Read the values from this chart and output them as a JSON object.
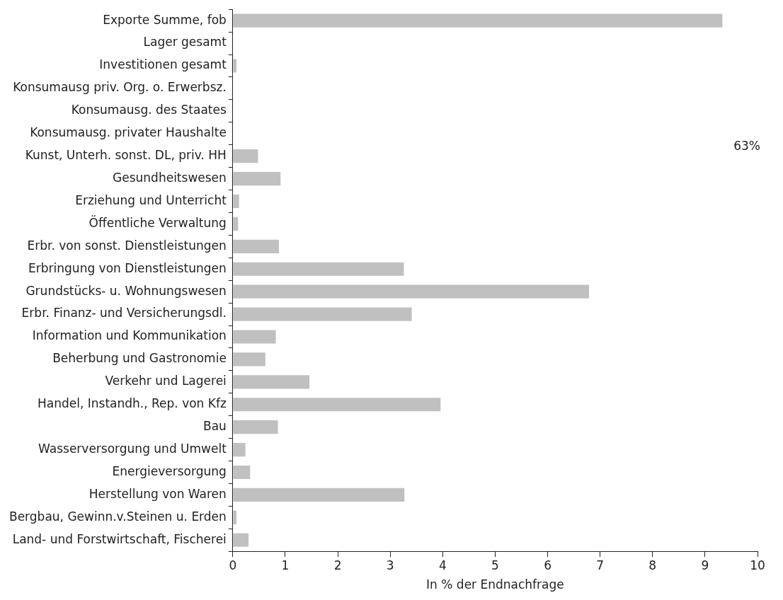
{
  "chart_data": {
    "type": "bar",
    "orientation": "horizontal",
    "xlabel": "In % der Endnachfrage",
    "categories": [
      "Exporte Summe, fob",
      "Lager gesamt",
      "Investitionen gesamt",
      "Konsumausg priv. Org. o. Erwerbsz.",
      "Konsumausg. des Staates",
      "Konsumausg. privater Haushalte",
      "Kunst, Unterh. sonst. DL, priv. HH",
      "Gesundheitswesen",
      "Erziehung und Unterricht",
      "Öffentliche Verwaltung",
      "Erbr. von sonst. Dienstleistungen",
      "Erbringung von Dienstleistungen",
      "Grundstücks- u. Wohnungswesen",
      "Erbr. Finanz- und Versicherungsdl.",
      "Information und Kommunikation",
      "Beherbung und Gastronomie",
      "Verkehr und Lagerei",
      "Handel, Instandh., Rep. von Kfz",
      "Bau",
      "Wasserversorgung und Umwelt",
      "Energieversorgung",
      "Herstellung von Waren",
      "Bergbau, Gewinn.v.Steinen u. Erden",
      "Land- und Forstwirtschaft, Fischerei"
    ],
    "values": [
      9.33,
      0,
      0.07,
      0,
      0,
      null,
      0.48,
      0.91,
      0.12,
      0.1,
      0.88,
      3.26,
      6.79,
      3.41,
      0.82,
      0.62,
      1.46,
      3.96,
      0.86,
      0.24,
      0.33,
      3.27,
      0.07,
      0.3
    ],
    "value_labels": [
      null,
      null,
      null,
      null,
      null,
      "63%",
      null,
      null,
      null,
      null,
      null,
      null,
      null,
      null,
      null,
      null,
      null,
      null,
      null,
      null,
      null,
      null,
      null,
      null
    ],
    "color": "#c0c0c0",
    "xlim": [
      0,
      10
    ],
    "xticks": [
      0,
      1,
      2,
      3,
      4,
      5,
      6,
      7,
      8,
      9,
      10
    ],
    "grid": false,
    "legend": false
  }
}
